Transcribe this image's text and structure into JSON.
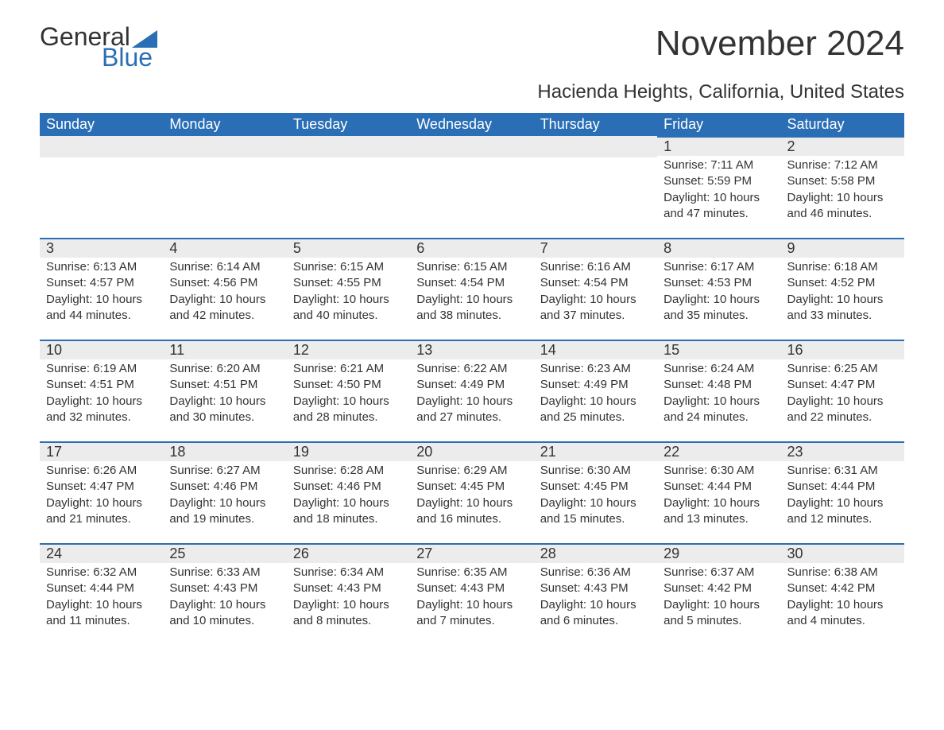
{
  "logo": {
    "text1": "General",
    "text2": "Blue",
    "flag_color": "#2a6fb5"
  },
  "title": "November 2024",
  "subtitle": "Hacienda Heights, California, United States",
  "colors": {
    "header_bg": "#2a6fb5",
    "header_text": "#ffffff",
    "daynum_bg": "#ececec",
    "daynum_border": "#2a6fb5",
    "body_text": "#333333",
    "page_bg": "#ffffff"
  },
  "fontsize": {
    "title": 44,
    "subtitle": 24,
    "weekday": 18,
    "daynum": 18,
    "body": 15
  },
  "weekdays": [
    "Sunday",
    "Monday",
    "Tuesday",
    "Wednesday",
    "Thursday",
    "Friday",
    "Saturday"
  ],
  "weeks": [
    [
      null,
      null,
      null,
      null,
      null,
      {
        "n": "1",
        "sunrise": "Sunrise: 7:11 AM",
        "sunset": "Sunset: 5:59 PM",
        "daylight": "Daylight: 10 hours and 47 minutes."
      },
      {
        "n": "2",
        "sunrise": "Sunrise: 7:12 AM",
        "sunset": "Sunset: 5:58 PM",
        "daylight": "Daylight: 10 hours and 46 minutes."
      }
    ],
    [
      {
        "n": "3",
        "sunrise": "Sunrise: 6:13 AM",
        "sunset": "Sunset: 4:57 PM",
        "daylight": "Daylight: 10 hours and 44 minutes."
      },
      {
        "n": "4",
        "sunrise": "Sunrise: 6:14 AM",
        "sunset": "Sunset: 4:56 PM",
        "daylight": "Daylight: 10 hours and 42 minutes."
      },
      {
        "n": "5",
        "sunrise": "Sunrise: 6:15 AM",
        "sunset": "Sunset: 4:55 PM",
        "daylight": "Daylight: 10 hours and 40 minutes."
      },
      {
        "n": "6",
        "sunrise": "Sunrise: 6:15 AM",
        "sunset": "Sunset: 4:54 PM",
        "daylight": "Daylight: 10 hours and 38 minutes."
      },
      {
        "n": "7",
        "sunrise": "Sunrise: 6:16 AM",
        "sunset": "Sunset: 4:54 PM",
        "daylight": "Daylight: 10 hours and 37 minutes."
      },
      {
        "n": "8",
        "sunrise": "Sunrise: 6:17 AM",
        "sunset": "Sunset: 4:53 PM",
        "daylight": "Daylight: 10 hours and 35 minutes."
      },
      {
        "n": "9",
        "sunrise": "Sunrise: 6:18 AM",
        "sunset": "Sunset: 4:52 PM",
        "daylight": "Daylight: 10 hours and 33 minutes."
      }
    ],
    [
      {
        "n": "10",
        "sunrise": "Sunrise: 6:19 AM",
        "sunset": "Sunset: 4:51 PM",
        "daylight": "Daylight: 10 hours and 32 minutes."
      },
      {
        "n": "11",
        "sunrise": "Sunrise: 6:20 AM",
        "sunset": "Sunset: 4:51 PM",
        "daylight": "Daylight: 10 hours and 30 minutes."
      },
      {
        "n": "12",
        "sunrise": "Sunrise: 6:21 AM",
        "sunset": "Sunset: 4:50 PM",
        "daylight": "Daylight: 10 hours and 28 minutes."
      },
      {
        "n": "13",
        "sunrise": "Sunrise: 6:22 AM",
        "sunset": "Sunset: 4:49 PM",
        "daylight": "Daylight: 10 hours and 27 minutes."
      },
      {
        "n": "14",
        "sunrise": "Sunrise: 6:23 AM",
        "sunset": "Sunset: 4:49 PM",
        "daylight": "Daylight: 10 hours and 25 minutes."
      },
      {
        "n": "15",
        "sunrise": "Sunrise: 6:24 AM",
        "sunset": "Sunset: 4:48 PM",
        "daylight": "Daylight: 10 hours and 24 minutes."
      },
      {
        "n": "16",
        "sunrise": "Sunrise: 6:25 AM",
        "sunset": "Sunset: 4:47 PM",
        "daylight": "Daylight: 10 hours and 22 minutes."
      }
    ],
    [
      {
        "n": "17",
        "sunrise": "Sunrise: 6:26 AM",
        "sunset": "Sunset: 4:47 PM",
        "daylight": "Daylight: 10 hours and 21 minutes."
      },
      {
        "n": "18",
        "sunrise": "Sunrise: 6:27 AM",
        "sunset": "Sunset: 4:46 PM",
        "daylight": "Daylight: 10 hours and 19 minutes."
      },
      {
        "n": "19",
        "sunrise": "Sunrise: 6:28 AM",
        "sunset": "Sunset: 4:46 PM",
        "daylight": "Daylight: 10 hours and 18 minutes."
      },
      {
        "n": "20",
        "sunrise": "Sunrise: 6:29 AM",
        "sunset": "Sunset: 4:45 PM",
        "daylight": "Daylight: 10 hours and 16 minutes."
      },
      {
        "n": "21",
        "sunrise": "Sunrise: 6:30 AM",
        "sunset": "Sunset: 4:45 PM",
        "daylight": "Daylight: 10 hours and 15 minutes."
      },
      {
        "n": "22",
        "sunrise": "Sunrise: 6:30 AM",
        "sunset": "Sunset: 4:44 PM",
        "daylight": "Daylight: 10 hours and 13 minutes."
      },
      {
        "n": "23",
        "sunrise": "Sunrise: 6:31 AM",
        "sunset": "Sunset: 4:44 PM",
        "daylight": "Daylight: 10 hours and 12 minutes."
      }
    ],
    [
      {
        "n": "24",
        "sunrise": "Sunrise: 6:32 AM",
        "sunset": "Sunset: 4:44 PM",
        "daylight": "Daylight: 10 hours and 11 minutes."
      },
      {
        "n": "25",
        "sunrise": "Sunrise: 6:33 AM",
        "sunset": "Sunset: 4:43 PM",
        "daylight": "Daylight: 10 hours and 10 minutes."
      },
      {
        "n": "26",
        "sunrise": "Sunrise: 6:34 AM",
        "sunset": "Sunset: 4:43 PM",
        "daylight": "Daylight: 10 hours and 8 minutes."
      },
      {
        "n": "27",
        "sunrise": "Sunrise: 6:35 AM",
        "sunset": "Sunset: 4:43 PM",
        "daylight": "Daylight: 10 hours and 7 minutes."
      },
      {
        "n": "28",
        "sunrise": "Sunrise: 6:36 AM",
        "sunset": "Sunset: 4:43 PM",
        "daylight": "Daylight: 10 hours and 6 minutes."
      },
      {
        "n": "29",
        "sunrise": "Sunrise: 6:37 AM",
        "sunset": "Sunset: 4:42 PM",
        "daylight": "Daylight: 10 hours and 5 minutes."
      },
      {
        "n": "30",
        "sunrise": "Sunrise: 6:38 AM",
        "sunset": "Sunset: 4:42 PM",
        "daylight": "Daylight: 10 hours and 4 minutes."
      }
    ]
  ]
}
